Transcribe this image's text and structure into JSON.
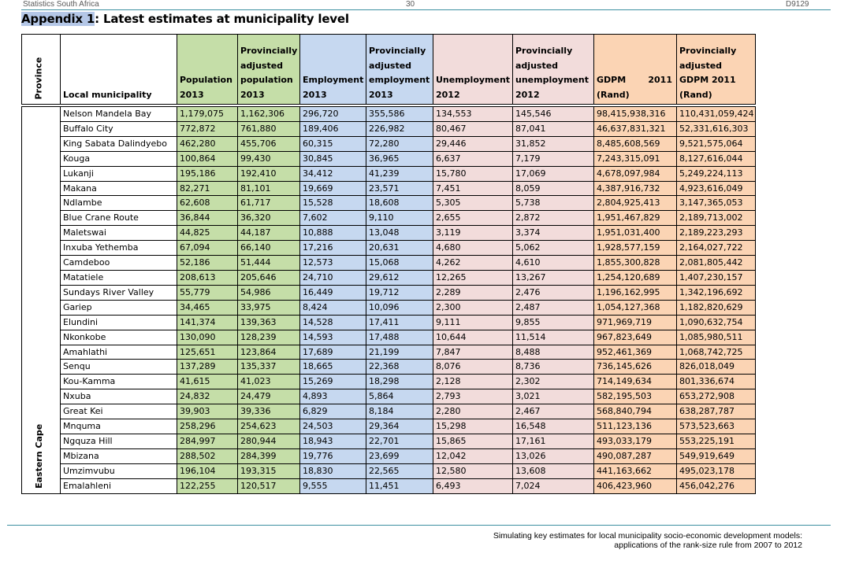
{
  "header": {
    "left": "Statistics South Africa",
    "page_number": "30",
    "doc_code": "D9129"
  },
  "title": {
    "highlight": "Appendix 1",
    "rest": ": Latest estimates at municipality level"
  },
  "table": {
    "province_label": "Province",
    "province_value": "Eastern Cape",
    "columns": {
      "municipality": "Local municipality",
      "pop2013": "Population 2013",
      "adj_pop2013": "Provincially adjusted population 2013",
      "emp2013": "Employment 2013",
      "adj_emp2013": "Provincially adjusted employment 2013",
      "unemp2012": "Unemployment 2012",
      "adj_unemp2012": "Provincially adjusted unemployment 2012",
      "gdpm_label": "GDPM",
      "gdpm_year": "2011",
      "gdpm_unit": "(Rand)",
      "adj_gdpm2011": "Provincially adjusted GDPM 2011 (Rand)"
    },
    "rows": [
      [
        "Nelson Mandela Bay",
        "1,179,075",
        "1,162,306",
        "296,720",
        "355,586",
        "134,553",
        "145,546",
        "98,415,938,316",
        "110,431,059,424"
      ],
      [
        "Buffalo City",
        "772,872",
        "761,880",
        "189,406",
        "226,982",
        "80,467",
        "87,041",
        "46,637,831,321",
        "52,331,616,303"
      ],
      [
        "King Sabata Dalindyebo",
        "462,280",
        "455,706",
        "60,315",
        "72,280",
        "29,446",
        "31,852",
        "8,485,608,569",
        "9,521,575,064"
      ],
      [
        "Kouga",
        "100,864",
        "99,430",
        "30,845",
        "36,965",
        "6,637",
        "7,179",
        "7,243,315,091",
        "8,127,616,044"
      ],
      [
        "Lukanji",
        "195,186",
        "192,410",
        "34,412",
        "41,239",
        "15,780",
        "17,069",
        "4,678,097,984",
        "5,249,224,113"
      ],
      [
        "Makana",
        "82,271",
        "81,101",
        "19,669",
        "23,571",
        "7,451",
        "8,059",
        "4,387,916,732",
        "4,923,616,049"
      ],
      [
        "Ndlambe",
        "62,608",
        "61,717",
        "15,528",
        "18,608",
        "5,305",
        "5,738",
        "2,804,925,413",
        "3,147,365,053"
      ],
      [
        "Blue Crane Route",
        "36,844",
        "36,320",
        "7,602",
        "9,110",
        "2,655",
        "2,872",
        "1,951,467,829",
        "2,189,713,002"
      ],
      [
        "Maletswai",
        "44,825",
        "44,187",
        "10,888",
        "13,048",
        "3,119",
        "3,374",
        "1,951,031,400",
        "2,189,223,293"
      ],
      [
        "Inxuba Yethemba",
        "67,094",
        "66,140",
        "17,216",
        "20,631",
        "4,680",
        "5,062",
        "1,928,577,159",
        "2,164,027,722"
      ],
      [
        "Camdeboo",
        "52,186",
        "51,444",
        "12,573",
        "15,068",
        "4,262",
        "4,610",
        "1,855,300,828",
        "2,081,805,442"
      ],
      [
        "Matatiele",
        "208,613",
        "205,646",
        "24,710",
        "29,612",
        "12,265",
        "13,267",
        "1,254,120,689",
        "1,407,230,157"
      ],
      [
        "Sundays River Valley",
        "55,779",
        "54,986",
        "16,449",
        "19,712",
        "2,289",
        "2,476",
        "1,196,162,995",
        "1,342,196,692"
      ],
      [
        "Gariep",
        "34,465",
        "33,975",
        "8,424",
        "10,096",
        "2,300",
        "2,487",
        "1,054,127,368",
        "1,182,820,629"
      ],
      [
        "Elundini",
        "141,374",
        "139,363",
        "14,528",
        "17,411",
        "9,111",
        "9,855",
        "971,969,719",
        "1,090,632,754"
      ],
      [
        "Nkonkobe",
        "130,090",
        "128,239",
        "14,593",
        "17,488",
        "10,644",
        "11,514",
        "967,823,649",
        "1,085,980,511"
      ],
      [
        "Amahlathi",
        "125,651",
        "123,864",
        "17,689",
        "21,199",
        "7,847",
        "8,488",
        "952,461,369",
        "1,068,742,725"
      ],
      [
        "Senqu",
        "137,289",
        "135,337",
        "18,665",
        "22,368",
        "8,076",
        "8,736",
        "736,145,626",
        "826,018,049"
      ],
      [
        "Kou-Kamma",
        "41,615",
        "41,023",
        "15,269",
        "18,298",
        "2,128",
        "2,302",
        "714,149,634",
        "801,336,674"
      ],
      [
        "Nxuba",
        "24,832",
        "24,479",
        "4,893",
        "5,864",
        "2,793",
        "3,021",
        "582,195,503",
        "653,272,908"
      ],
      [
        "Great Kei",
        "39,903",
        "39,336",
        "6,829",
        "8,184",
        "2,280",
        "2,467",
        "568,840,794",
        "638,287,787"
      ],
      [
        "Mnquma",
        "258,296",
        "254,623",
        "24,503",
        "29,364",
        "15,298",
        "16,548",
        "511,123,136",
        "573,523,663"
      ],
      [
        "Ngquza Hill",
        "284,997",
        "280,944",
        "18,943",
        "22,701",
        "15,865",
        "17,161",
        "493,033,179",
        "553,225,191"
      ],
      [
        "Mbizana",
        "288,502",
        "284,399",
        "19,776",
        "23,699",
        "12,042",
        "13,026",
        "490,087,287",
        "549,919,649"
      ],
      [
        "Umzimvubu",
        "196,104",
        "193,315",
        "18,830",
        "22,565",
        "12,580",
        "13,608",
        "441,163,662",
        "495,023,178"
      ],
      [
        "Emalahleni",
        "122,255",
        "120,517",
        "9,555",
        "11,451",
        "6,493",
        "7,024",
        "406,423,960",
        "456,042,276"
      ]
    ]
  },
  "footer": {
    "line1": "Simulating key estimates for local municipality socio-economic development models:",
    "line2": "applications of the rank-size rule from 2007 to 2012"
  },
  "colors": {
    "population": "#c5dea8",
    "employment": "#c6d8f0",
    "unemployment": "#f2dcdb",
    "gdpm": "#fbd4b4",
    "title_highlight": "#b4c7e7",
    "rule": "#3b8fa0"
  }
}
